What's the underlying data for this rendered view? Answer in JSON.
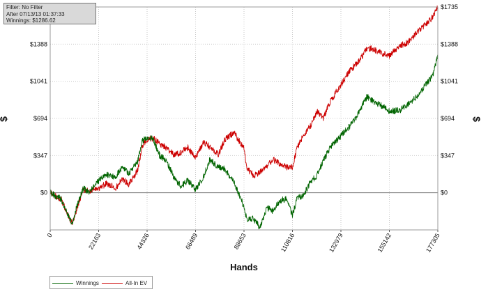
{
  "filter_info": {
    "line1": "Filter: No Filter",
    "line2": "After 07/13/13 01:37:33",
    "line3": "Winnings: $1286.62"
  },
  "chart_data": {
    "type": "line",
    "xlabel": "Hands",
    "ylabel": "$",
    "ylabel_right": "$",
    "xlim": [
      0,
      177305
    ],
    "ylim": [
      -347,
      1735
    ],
    "x_ticks": [
      0,
      22163,
      44326,
      66489,
      88653,
      110816,
      132979,
      155142,
      177305
    ],
    "x_tick_labels": [
      "0",
      "22163",
      "44326",
      "66489",
      "88653",
      "110816",
      "132979",
      "155142",
      "177305"
    ],
    "y_ticks": [
      0,
      347,
      694,
      1041,
      1388,
      1735
    ],
    "y_tick_labels": [
      "$0",
      "$347",
      "$694",
      "$1041",
      "$1388",
      "$1735"
    ],
    "grid": true,
    "legend_position": "bottom-left",
    "series": [
      {
        "name": "Winnings",
        "color": "#006400",
        "x": [
          0,
          5000,
          10000,
          12000,
          15000,
          18000,
          22163,
          26000,
          30000,
          33000,
          36000,
          40000,
          42000,
          44326,
          47000,
          50000,
          53000,
          57000,
          60000,
          63000,
          66489,
          70000,
          73000,
          77000,
          80000,
          84000,
          88653,
          90000,
          93000,
          96000,
          99000,
          102000,
          105000,
          108000,
          110816,
          113000,
          116000,
          119000,
          122000,
          125000,
          128000,
          132979,
          137000,
          141000,
          145000,
          148000,
          152000,
          155142,
          160000,
          164000,
          168000,
          172000,
          175000,
          177305
        ],
        "y": [
          0,
          -60,
          -290,
          -140,
          40,
          10,
          110,
          170,
          150,
          240,
          180,
          290,
          480,
          520,
          500,
          350,
          300,
          130,
          60,
          120,
          30,
          140,
          310,
          240,
          220,
          100,
          -130,
          -250,
          -240,
          -330,
          -140,
          -170,
          -70,
          -60,
          -210,
          -50,
          -20,
          100,
          160,
          300,
          420,
          530,
          620,
          740,
          900,
          850,
          810,
          760,
          770,
          830,
          900,
          1020,
          1090,
          1287
        ]
      },
      {
        "name": "All-In EV",
        "color": "#cc0000",
        "x": [
          0,
          5000,
          10000,
          12000,
          15000,
          18000,
          22163,
          26000,
          30000,
          33000,
          36000,
          40000,
          42000,
          44326,
          47000,
          50000,
          53000,
          57000,
          60000,
          63000,
          66489,
          70000,
          73000,
          77000,
          80000,
          84000,
          88653,
          90000,
          93000,
          96000,
          99000,
          102000,
          105000,
          108000,
          110816,
          113000,
          116000,
          119000,
          122000,
          125000,
          128000,
          132979,
          137000,
          141000,
          145000,
          148000,
          152000,
          155142,
          160000,
          164000,
          168000,
          172000,
          175000,
          177305
        ],
        "y": [
          0,
          -60,
          -290,
          -160,
          30,
          20,
          40,
          90,
          40,
          130,
          80,
          210,
          430,
          500,
          510,
          460,
          420,
          350,
          380,
          420,
          330,
          470,
          430,
          360,
          500,
          560,
          420,
          230,
          160,
          190,
          250,
          310,
          270,
          240,
          240,
          420,
          540,
          620,
          760,
          700,
          850,
          1010,
          1140,
          1220,
          1350,
          1340,
          1300,
          1280,
          1370,
          1410,
          1500,
          1580,
          1640,
          1735
        ]
      }
    ]
  },
  "legend": {
    "winnings_label": "Winnings",
    "allin_label": "All-In EV"
  }
}
